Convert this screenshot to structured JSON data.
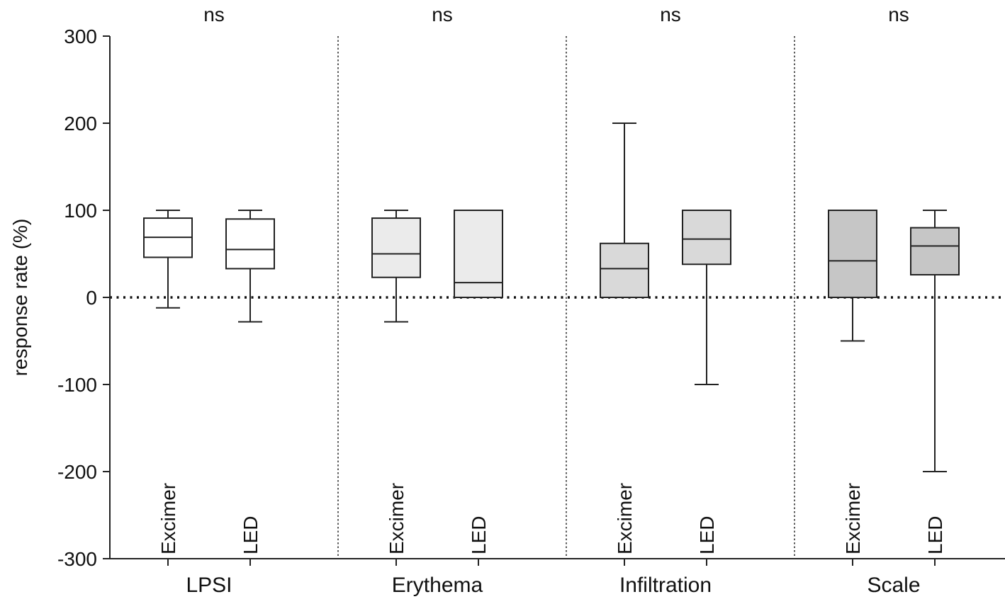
{
  "chart_data": {
    "type": "boxplot",
    "ylabel": "response rate (%)",
    "ylim": [
      -300,
      300
    ],
    "yticks": [
      300,
      200,
      100,
      0,
      -100,
      -200,
      -300
    ],
    "reference_line": {
      "y": 0,
      "style": "dotted"
    },
    "colors": {
      "LPSI": "#ffffff",
      "Erythema": "#ebebeb",
      "Infiltration": "#d9d9d9",
      "Scale": "#c6c6c6",
      "stroke": "#222222"
    },
    "groups": [
      {
        "name": "LPSI",
        "significance": "ns",
        "boxes": [
          {
            "label": "Excimer",
            "min": -12,
            "q1": 46,
            "median": 69,
            "q3": 91,
            "max": 100
          },
          {
            "label": "LED",
            "min": -28,
            "q1": 33,
            "median": 55,
            "q3": 90,
            "max": 100
          }
        ]
      },
      {
        "name": "Erythema",
        "significance": "ns",
        "boxes": [
          {
            "label": "Excimer",
            "min": -28,
            "q1": 23,
            "median": 50,
            "q3": 91,
            "max": 100
          },
          {
            "label": "LED",
            "min": 0,
            "q1": 0,
            "median": 17,
            "q3": 100,
            "max": 100
          }
        ]
      },
      {
        "name": "Infiltration",
        "significance": "ns",
        "boxes": [
          {
            "label": "Excimer",
            "min": 0,
            "q1": 0,
            "median": 33,
            "q3": 62,
            "max": 200
          },
          {
            "label": "LED",
            "min": -100,
            "q1": 38,
            "median": 67,
            "q3": 100,
            "max": 100
          }
        ]
      },
      {
        "name": "Scale",
        "significance": "ns",
        "boxes": [
          {
            "label": "Excimer",
            "min": -50,
            "q1": 0,
            "median": 42,
            "q3": 100,
            "max": 100
          },
          {
            "label": "LED",
            "min": -200,
            "q1": 26,
            "median": 59,
            "q3": 80,
            "max": 100
          }
        ]
      }
    ]
  }
}
